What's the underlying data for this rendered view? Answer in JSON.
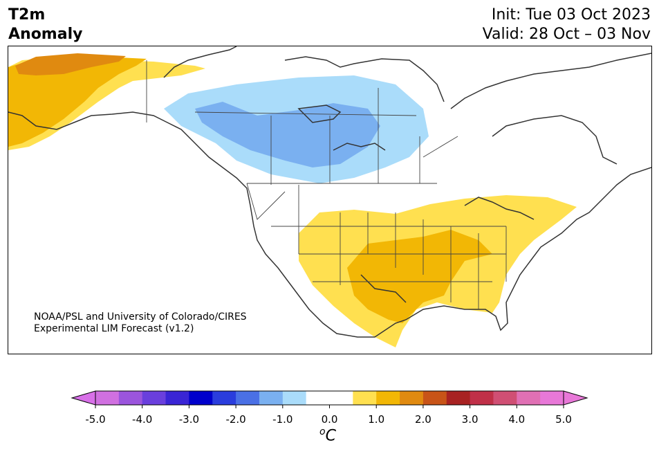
{
  "header": {
    "title_line1": "T2m",
    "title_line2": "Anomaly",
    "init": "Init: Tue 03 Oct 2023",
    "valid": "Valid: 28 Oct – 03 Nov"
  },
  "credit": {
    "line1": "NOAA/PSL and University of Colorado/CIRES",
    "line2": "Experimental LIM Forecast (v1.2)"
  },
  "colorbar": {
    "unit_sup": "o",
    "unit": "C",
    "ticks": [
      "-5.0",
      "-4.0",
      "-3.0",
      "-2.0",
      "-1.0",
      "0.0",
      "1.0",
      "2.0",
      "3.0",
      "4.0",
      "5.0"
    ],
    "colors": [
      "#d070e0",
      "#9b55dd",
      "#6a3fdd",
      "#3a25d5",
      "#0000cc",
      "#2a3ddd",
      "#4a70e5",
      "#7ab0f0",
      "#aadcfa",
      "#ffffff",
      "#ffffff",
      "#ffe050",
      "#f2b705",
      "#e08a10",
      "#c85418",
      "#a82222",
      "#c03048",
      "#d04f74",
      "#e070b4",
      "#e878d8"
    ],
    "under_color": "#d870e8",
    "over_color": "#e878d8"
  },
  "map": {
    "anomaly_colors": {
      "cold_light": "#aadcfa",
      "cold_mid": "#7ab0f0",
      "warm_light": "#ffe050",
      "warm_mid": "#f2b705",
      "warm_strong": "#e08a10"
    }
  }
}
